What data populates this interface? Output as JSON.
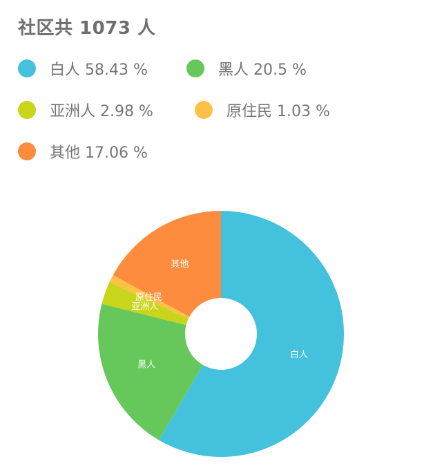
{
  "header": {
    "title": "社区共 1073 人"
  },
  "chart_data": {
    "type": "pie",
    "title": "社区共 1073 人",
    "unit": "%",
    "series": [
      {
        "name": "白人",
        "value": 58.43,
        "label": "白人 58.43 %",
        "color": "#43C1DD"
      },
      {
        "name": "黑人",
        "value": 20.5,
        "label": "黑人 20.5 %",
        "color": "#66C85B"
      },
      {
        "name": "亚洲人",
        "value": 2.98,
        "label": "亚洲人 2.98 %",
        "color": "#C8D51A"
      },
      {
        "name": "原住民",
        "value": 1.03,
        "label": "原住民 1.03 %",
        "color": "#FCC146"
      },
      {
        "name": "其他",
        "value": 17.06,
        "label": "其他 17.06 %",
        "color": "#FD8C3E"
      }
    ],
    "legend_position": "top-left",
    "donut": true
  }
}
